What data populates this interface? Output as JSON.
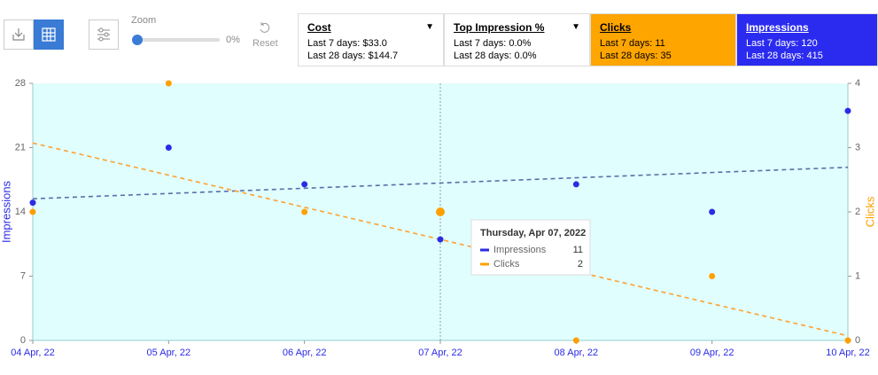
{
  "toolbar": {
    "zoom_label": "Zoom",
    "zoom_value": "0%",
    "reset": "Reset"
  },
  "metrics": [
    {
      "name": "Cost",
      "last7": "Last 7 days: $33.0",
      "last28": "Last 28 days: $144.7",
      "background": "#ffffff",
      "text_color": "#000000",
      "dropdown": true
    },
    {
      "name": "Top Impression %",
      "last7": "Last 7 days: 0.0%",
      "last28": "Last 28 days: 0.0%",
      "background": "#ffffff",
      "text_color": "#000000",
      "dropdown": true
    },
    {
      "name": "Clicks",
      "last7": "Last 7 days: 11",
      "last28": "Last 28 days: 35",
      "background": "#ffa500",
      "text_color": "#000000",
      "dropdown": false
    },
    {
      "name": "Impressions",
      "last7": "Last 7 days: 120",
      "last28": "Last 28 days: 415",
      "background": "#2b2bef",
      "text_color": "#ffffff",
      "dropdown": false
    }
  ],
  "chart_data": {
    "type": "scatter",
    "categories": [
      "04 Apr, 22",
      "05 Apr, 22",
      "06 Apr, 22",
      "07 Apr, 22",
      "08 Apr, 22",
      "09 Apr, 22",
      "10 Apr, 22"
    ],
    "series": [
      {
        "name": "Impressions",
        "color": "#2b2be6",
        "values": [
          15,
          21,
          17,
          11,
          17,
          14,
          25
        ],
        "trendline": true,
        "trend_color": "#5b6ea8"
      },
      {
        "name": "Clicks",
        "color": "#ffa000",
        "axis": "y2",
        "values": [
          2,
          4,
          2,
          2,
          0,
          1,
          0
        ],
        "trendline": true,
        "trend_color": "#ffa030"
      }
    ],
    "ylabel": "Impressions",
    "y2label": "Clicks",
    "ylim": [
      0,
      28
    ],
    "yticks": [
      0,
      7,
      14,
      21,
      28
    ],
    "y2lim": [
      0,
      4
    ],
    "y2ticks": [
      0,
      1,
      2,
      3,
      4
    ],
    "plot_background": "#e0fefe",
    "tooltip": {
      "title": "Thursday, Apr 07, 2022",
      "index": 3
    }
  }
}
